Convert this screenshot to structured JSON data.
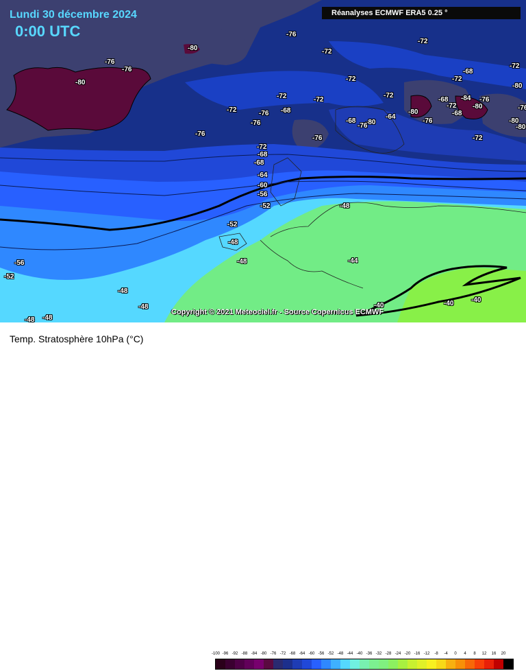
{
  "header": {
    "date": "Lundi 30 décembre 2024",
    "time": "0:00 UTC",
    "source": "Réanalyses ECMWF ERA5 0.25 °"
  },
  "copyright": "Copyright © 2021 Meteociel.fr - Source Copernicus ECMWF",
  "footer": {
    "title": "Temp. Stratosphère 10hPa (°C)"
  },
  "legend": {
    "ticks": [
      "-100",
      "-96",
      "-92",
      "-88",
      "-84",
      "-80",
      "-76",
      "-72",
      "-68",
      "-64",
      "-60",
      "-56",
      "-52",
      "-48",
      "-44",
      "-40",
      "-36",
      "-32",
      "-28",
      "-24",
      "-20",
      "-16",
      "-12",
      "-8",
      "-4",
      "0",
      "4",
      "8",
      "12",
      "16",
      "20"
    ],
    "colors": [
      "#2a001a",
      "#3a0030",
      "#4e0046",
      "#62005a",
      "#78006e",
      "#5a0a40",
      "#2a2a70",
      "#1c2f8c",
      "#1e3cb4",
      "#2048d8",
      "#2860ff",
      "#2f88ff",
      "#3fb0ff",
      "#55d8ff",
      "#70f0e0",
      "#78f0b0",
      "#7cf090",
      "#80f080",
      "#8cf060",
      "#a8f040",
      "#c8f030",
      "#e0f028",
      "#f8f020",
      "#f8d818",
      "#f8b010",
      "#f89008",
      "#f86808",
      "#f84008",
      "#e82008",
      "#c00000",
      "#000000"
    ]
  },
  "colors": {
    "polar": "#3c4070",
    "deep_blue": "#17308a",
    "mid_blue": "#1a40c4",
    "blue": "#2460f0",
    "light_blue": "#2f8fff",
    "cyan": "#5ad8ff",
    "green": "#72ec86",
    "lime": "#88f048",
    "maroon": "#5a0a3a"
  },
  "labels": [
    {
      "t": "-76"
    },
    {
      "t": "-80"
    },
    {
      "t": "-72"
    },
    {
      "t": "-72"
    },
    {
      "t": "-76"
    },
    {
      "t": "-76"
    },
    {
      "t": "-80"
    },
    {
      "t": "-72"
    },
    {
      "t": "-68"
    },
    {
      "t": "-72"
    },
    {
      "t": "-72"
    },
    {
      "t": "-72"
    },
    {
      "t": "-72"
    },
    {
      "t": "-72"
    },
    {
      "t": "-72"
    },
    {
      "t": "-68"
    },
    {
      "t": "-76"
    },
    {
      "t": "-76"
    },
    {
      "t": "-68"
    },
    {
      "t": "-76"
    },
    {
      "t": "-80"
    },
    {
      "t": "-64"
    },
    {
      "t": "-80"
    },
    {
      "t": "-76"
    },
    {
      "t": "-68"
    },
    {
      "t": "-72"
    },
    {
      "t": "-84"
    },
    {
      "t": "-80"
    },
    {
      "t": "-76"
    },
    {
      "t": "-68"
    },
    {
      "t": "-76"
    },
    {
      "t": "-76"
    },
    {
      "t": "-72"
    },
    {
      "t": "-68"
    },
    {
      "t": "-68"
    },
    {
      "t": "-64"
    },
    {
      "t": "-60"
    },
    {
      "t": "-56"
    },
    {
      "t": "-52"
    },
    {
      "t": "-48"
    },
    {
      "t": "-52"
    },
    {
      "t": "-48"
    },
    {
      "t": "-48"
    },
    {
      "t": "-44"
    },
    {
      "t": "-56"
    },
    {
      "t": "-52"
    },
    {
      "t": "-48"
    },
    {
      "t": "-48"
    },
    {
      "t": "-48"
    },
    {
      "t": "-48"
    },
    {
      "t": "-40"
    },
    {
      "t": "-40"
    },
    {
      "t": "-40"
    },
    {
      "t": "-80"
    },
    {
      "t": "-80"
    },
    {
      "t": "-72"
    },
    {
      "t": "-76"
    },
    {
      "t": "-80"
    },
    {
      "t": "-72"
    }
  ]
}
